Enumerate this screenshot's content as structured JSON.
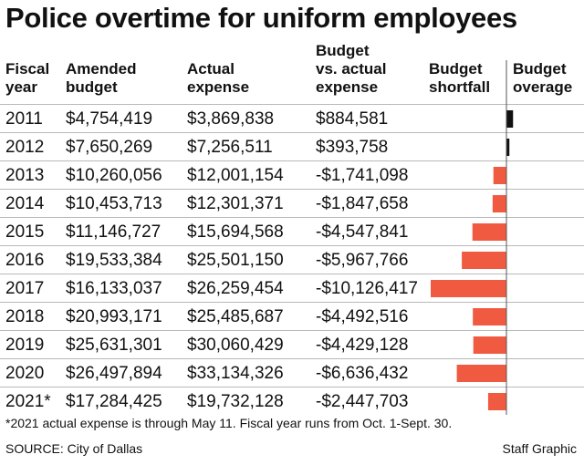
{
  "title": "Police overtime for uniform employees",
  "headers": {
    "fiscal_year": [
      "Fiscal",
      "year"
    ],
    "amended_budget": [
      "Amended",
      "budget"
    ],
    "actual_expense": [
      "Actual",
      "expense"
    ],
    "budget_vs_actual": [
      "Budget",
      "vs. actual",
      "expense"
    ],
    "shortfall": [
      "Budget",
      "shortfall"
    ],
    "overage": [
      "Budget",
      "overage"
    ]
  },
  "rows": [
    {
      "year": "2011",
      "amended": "$4,754,419",
      "actual": "$3,869,838",
      "diff": "$884,581"
    },
    {
      "year": "2012",
      "amended": "$7,650,269",
      "actual": "$7,256,511",
      "diff": "$393,758"
    },
    {
      "year": "2013",
      "amended": "$10,260,056",
      "actual": "$12,001,154",
      "diff": "-$1,741,098"
    },
    {
      "year": "2014",
      "amended": "$10,453,713",
      "actual": "$12,301,371",
      "diff": "-$1,847,658"
    },
    {
      "year": "2015",
      "amended": "$11,146,727",
      "actual": "$15,694,568",
      "diff": "-$4,547,841"
    },
    {
      "year": "2016",
      "amended": "$19,533,384",
      "actual": "$25,501,150",
      "diff": "-$5,967,766"
    },
    {
      "year": "2017",
      "amended": "$16,133,037",
      "actual": "$26,259,454",
      "diff": "-$10,126,417"
    },
    {
      "year": "2018",
      "amended": "$20,993,171",
      "actual": "$25,485,687",
      "diff": "-$4,492,516"
    },
    {
      "year": "2019",
      "amended": "$25,631,301",
      "actual": "$30,060,429",
      "diff": "-$4,429,128"
    },
    {
      "year": "2020",
      "amended": "$26,497,894",
      "actual": "$33,134,326",
      "diff": "-$6,636,432"
    },
    {
      "year": "2021*",
      "amended": "$17,284,425",
      "actual": "$19,732,128",
      "diff": "-$2,447,703"
    }
  ],
  "chart_data": {
    "type": "bar",
    "orientation": "horizontal-diverging",
    "categories": [
      "2011",
      "2012",
      "2013",
      "2014",
      "2015",
      "2016",
      "2017",
      "2018",
      "2019",
      "2020",
      "2021*"
    ],
    "values": [
      884581,
      393758,
      -1741098,
      -1847658,
      -4547841,
      -5967766,
      -10126417,
      -4492516,
      -4429128,
      -6636432,
      -2447703
    ],
    "colors": {
      "shortfall": "#f05a40",
      "overage": "#111111"
    }
  },
  "footnote": "*2021 actual expense is through May 11. Fiscal year runs from Oct. 1-Sept. 30.",
  "source": "SOURCE: City of Dallas",
  "credit": "Staff Graphic"
}
